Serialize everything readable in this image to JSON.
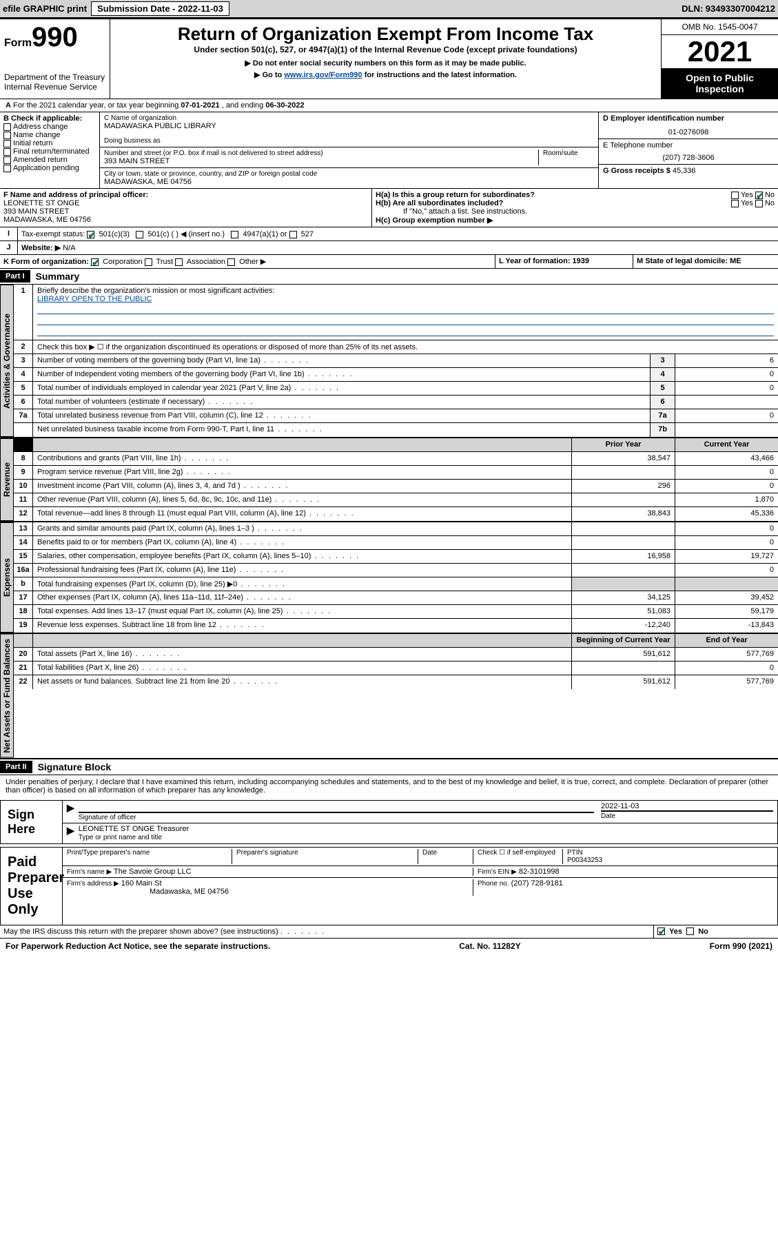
{
  "topbar": {
    "efile": "efile GRAPHIC print",
    "submission": "Submission Date - 2022-11-03",
    "dln": "DLN: 93493307004212"
  },
  "header": {
    "form_word": "Form",
    "form_num": "990",
    "dept": "Department of the Treasury",
    "irs": "Internal Revenue Service",
    "title": "Return of Organization Exempt From Income Tax",
    "sub1": "Under section 501(c), 527, or 4947(a)(1) of the Internal Revenue Code (except private foundations)",
    "sub2": "▶ Do not enter social security numbers on this form as it may be made public.",
    "sub3_pre": "▶ Go to ",
    "sub3_link": "www.irs.gov/Form990",
    "sub3_post": " for instructions and the latest information.",
    "omb": "OMB No. 1545-0047",
    "year": "2021",
    "open": "Open to Public Inspection"
  },
  "sectionA": {
    "text_pre": "For the 2021 calendar year, or tax year beginning ",
    "begin": "07-01-2021",
    "mid": " , and ending ",
    "end": "06-30-2022"
  },
  "blockB": {
    "b_label": "B Check if applicable:",
    "opts": [
      "Address change",
      "Name change",
      "Initial return",
      "Final return/terminated",
      "Amended return",
      "Application pending"
    ],
    "c_label": "C Name of organization",
    "c_name": "MADAWASKA PUBLIC LIBRARY",
    "dba": "Doing business as",
    "addr_label": "Number and street (or P.O. box if mail is not delivered to street address)",
    "room": "Room/suite",
    "addr": "393 MAIN STREET",
    "city_label": "City or town, state or province, country, and ZIP or foreign postal code",
    "city": "MADAWASKA, ME  04756",
    "d_label": "D Employer identification number",
    "d_val": "01-0276098",
    "e_label": "E Telephone number",
    "e_val": "(207) 728-3606",
    "g_label": "G Gross receipts $",
    "g_val": "45,336"
  },
  "blockF": {
    "f_label": "F Name and address of principal officer:",
    "f_name": "LEONETTE ST ONGE",
    "f_addr1": "393 MAIN STREET",
    "f_addr2": "MADAWASKA, ME  04756",
    "ha": "H(a)  Is this a group return for subordinates?",
    "hb": "H(b)  Are all subordinates included?",
    "hb_note": "If \"No,\" attach a list. See instructions.",
    "hc": "H(c)  Group exemption number ▶",
    "yes": "Yes",
    "no": "No"
  },
  "rowI": {
    "label": "Tax-exempt status:",
    "o1": "501(c)(3)",
    "o2": "501(c) (   ) ◀ (insert no.)",
    "o3": "4947(a)(1) or",
    "o4": "527"
  },
  "rowJ": {
    "label": "Website: ▶",
    "val": "N/A"
  },
  "rowK": {
    "label": "K Form of organization:",
    "o1": "Corporation",
    "o2": "Trust",
    "o3": "Association",
    "o4": "Other ▶",
    "L": "L Year of formation: 1939",
    "M": "M State of legal domicile: ME"
  },
  "part1": {
    "header": "Part I",
    "title": "Summary",
    "tabs": {
      "gov": "Activities & Governance",
      "rev": "Revenue",
      "exp": "Expenses",
      "net": "Net Assets or Fund Balances"
    },
    "l1": "Briefly describe the organization's mission or most significant activities:",
    "l1v": "LIBRARY OPEN TO THE PUBLIC",
    "l2": "Check this box ▶ ☐  if the organization discontinued its operations or disposed of more than 25% of its net assets.",
    "rows_gov": [
      {
        "n": "3",
        "d": "Number of voting members of the governing body (Part VI, line 1a)",
        "box": "3",
        "v": "6"
      },
      {
        "n": "4",
        "d": "Number of independent voting members of the governing body (Part VI, line 1b)",
        "box": "4",
        "v": "0"
      },
      {
        "n": "5",
        "d": "Total number of individuals employed in calendar year 2021 (Part V, line 2a)",
        "box": "5",
        "v": "0"
      },
      {
        "n": "6",
        "d": "Total number of volunteers (estimate if necessary)",
        "box": "6",
        "v": ""
      },
      {
        "n": "7a",
        "d": "Total unrelated business revenue from Part VIII, column (C), line 12",
        "box": "7a",
        "v": "0"
      },
      {
        "n": "",
        "d": "Net unrelated business taxable income from Form 990-T, Part I, line 11",
        "box": "7b",
        "v": ""
      }
    ],
    "col_prior": "Prior Year",
    "col_current": "Current Year",
    "col_beg": "Beginning of Current Year",
    "col_end": "End of Year",
    "rows_rev": [
      {
        "n": "8",
        "d": "Contributions and grants (Part VIII, line 1h)",
        "p": "38,547",
        "c": "43,466"
      },
      {
        "n": "9",
        "d": "Program service revenue (Part VIII, line 2g)",
        "p": "",
        "c": "0"
      },
      {
        "n": "10",
        "d": "Investment income (Part VIII, column (A), lines 3, 4, and 7d )",
        "p": "296",
        "c": "0"
      },
      {
        "n": "11",
        "d": "Other revenue (Part VIII, column (A), lines 5, 6d, 8c, 9c, 10c, and 11e)",
        "p": "",
        "c": "1,870"
      },
      {
        "n": "12",
        "d": "Total revenue—add lines 8 through 11 (must equal Part VIII, column (A), line 12)",
        "p": "38,843",
        "c": "45,336"
      }
    ],
    "rows_exp": [
      {
        "n": "13",
        "d": "Grants and similar amounts paid (Part IX, column (A), lines 1–3 )",
        "p": "",
        "c": "0"
      },
      {
        "n": "14",
        "d": "Benefits paid to or for members (Part IX, column (A), line 4)",
        "p": "",
        "c": "0"
      },
      {
        "n": "15",
        "d": "Salaries, other compensation, employee benefits (Part IX, column (A), lines 5–10)",
        "p": "16,958",
        "c": "19,727"
      },
      {
        "n": "16a",
        "d": "Professional fundraising fees (Part IX, column (A), line 11e)",
        "p": "",
        "c": "0"
      },
      {
        "n": "b",
        "d": "Total fundraising expenses (Part IX, column (D), line 25) ▶0",
        "p": "",
        "c": "",
        "shaded": true
      },
      {
        "n": "17",
        "d": "Other expenses (Part IX, column (A), lines 11a–11d, 11f–24e)",
        "p": "34,125",
        "c": "39,452"
      },
      {
        "n": "18",
        "d": "Total expenses. Add lines 13–17 (must equal Part IX, column (A), line 25)",
        "p": "51,083",
        "c": "59,179"
      },
      {
        "n": "19",
        "d": "Revenue less expenses. Subtract line 18 from line 12",
        "p": "-12,240",
        "c": "-13,843"
      }
    ],
    "rows_net": [
      {
        "n": "20",
        "d": "Total assets (Part X, line 16)",
        "p": "591,612",
        "c": "577,769"
      },
      {
        "n": "21",
        "d": "Total liabilities (Part X, line 26)",
        "p": "",
        "c": "0"
      },
      {
        "n": "22",
        "d": "Net assets or fund balances. Subtract line 21 from line 20",
        "p": "591,612",
        "c": "577,769"
      }
    ]
  },
  "part2": {
    "header": "Part II",
    "title": "Signature Block",
    "decl": "Under penalties of perjury, I declare that I have examined this return, including accompanying schedules and statements, and to the best of my knowledge and belief, it is true, correct, and complete. Declaration of preparer (other than officer) is based on all information of which preparer has any knowledge.",
    "sign_here": "Sign Here",
    "sig_officer": "Signature of officer",
    "date": "Date",
    "date_val": "2022-11-03",
    "name_title": "LEONETTE ST ONGE  Treasurer",
    "name_title_lbl": "Type or print name and title",
    "paid": "Paid Preparer Use Only",
    "pt_name": "Print/Type preparer's name",
    "pt_sig": "Preparer's signature",
    "pt_date": "Date",
    "pt_check": "Check ☐ if self-employed",
    "ptin_lbl": "PTIN",
    "ptin": "P00343253",
    "firm_name_lbl": "Firm's name  ▶",
    "firm_name": "The Savoie Group LLC",
    "firm_ein_lbl": "Firm's EIN ▶",
    "firm_ein": "82-3101998",
    "firm_addr_lbl": "Firm's address ▶",
    "firm_addr1": "160 Main St",
    "firm_addr2": "Madawaska, ME  04756",
    "phone_lbl": "Phone no.",
    "phone": "(207) 728-9181",
    "may_irs": "May the IRS discuss this return with the preparer shown above? (see instructions)"
  },
  "footer": {
    "left": "For Paperwork Reduction Act Notice, see the separate instructions.",
    "mid": "Cat. No. 11282Y",
    "right": "Form 990 (2021)"
  }
}
